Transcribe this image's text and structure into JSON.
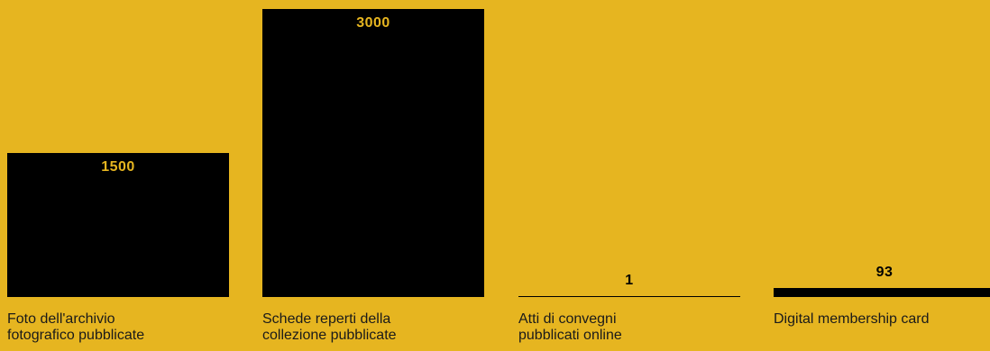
{
  "chart_data": {
    "type": "bar",
    "categories": [
      "Foto dell'archivio\nfotografico pubblicate",
      "Schede reperti della\ncollezione pubblicate",
      "Atti di convegni\npubblicati online",
      "Digital membership card"
    ],
    "values": [
      1500,
      3000,
      1,
      93
    ],
    "ylim": [
      0,
      3000
    ],
    "grid": false,
    "legend": "none",
    "colors": {
      "background": "#E6B520",
      "bar": "#000000",
      "label_inside": "#E6B520",
      "label_outside": "#000000"
    }
  }
}
